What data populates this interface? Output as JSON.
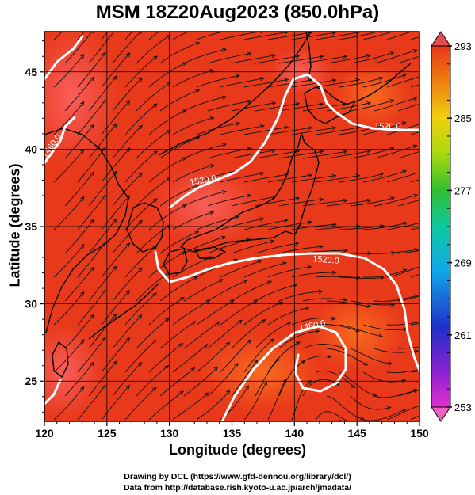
{
  "title": "MSM 18Z20Aug2023 (850.0hPa)",
  "xlabel": "Longitude (degrees)",
  "ylabel": "Latitude  (degrees)",
  "credits": [
    "Drawing by DCL (https://www.gfd-dennou.org/library/dcl/)",
    "Data from http://database.rish.kyoto-u.ac.jp/arch/jmadata/"
  ],
  "map": {
    "lon_range": [
      120,
      150
    ],
    "lat_range": [
      22.4,
      47.6
    ],
    "x_ticks": [
      "120",
      "125",
      "130",
      "135",
      "140",
      "145",
      "150"
    ],
    "y_ticks": [
      "25",
      "30",
      "35",
      "40",
      "45"
    ],
    "x_tick_values": [
      120,
      125,
      130,
      135,
      140,
      145,
      150
    ],
    "y_tick_values": [
      25,
      30,
      35,
      40,
      45
    ],
    "contour_labels": [
      "1520.0",
      "1520.0",
      "1520.0",
      "1480.0",
      "1460.0"
    ],
    "colorbar_ticks": [
      "293",
      "285",
      "277",
      "269",
      "261",
      "253"
    ],
    "colors": {
      "field": "#e8391a",
      "contour": "#ffffff",
      "coast": "#000000"
    }
  }
}
